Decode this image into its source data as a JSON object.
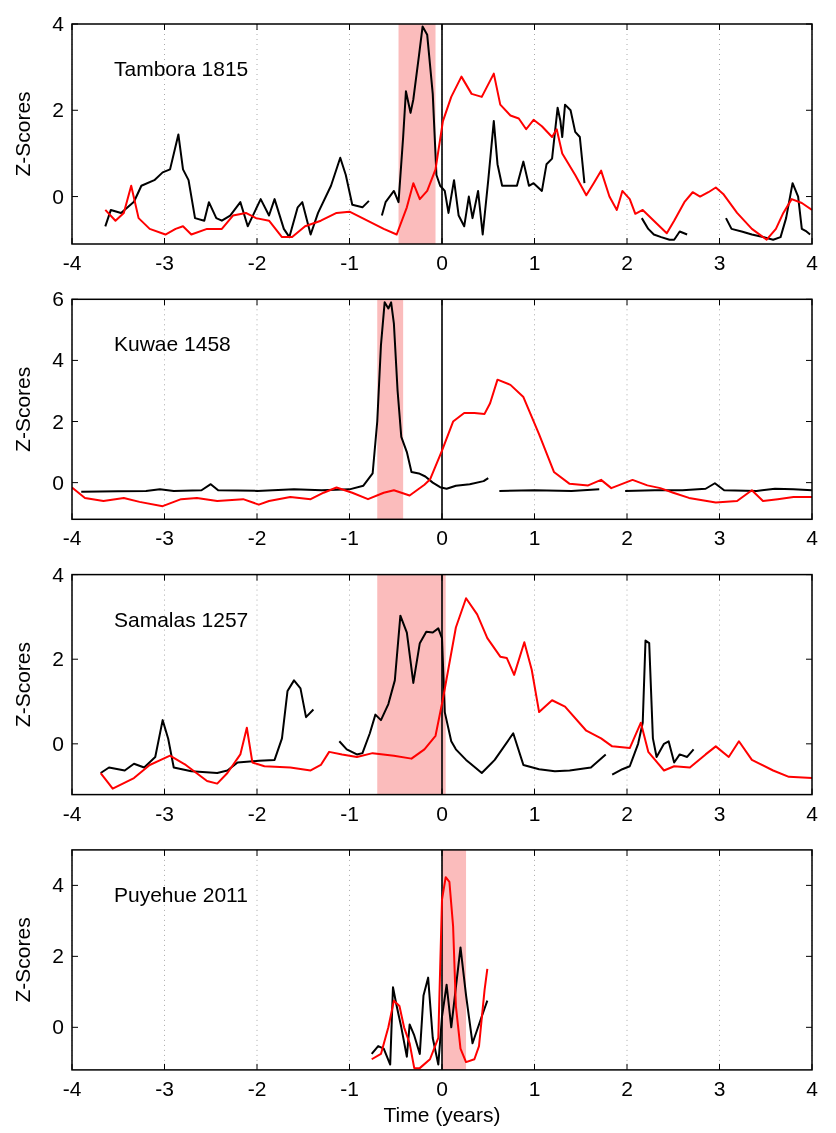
{
  "chart_data": [
    {
      "type": "line",
      "ylabel": "Z-Scores",
      "annotations": [
        "Tambora 1815"
      ],
      "xlim": [
        -4,
        4
      ],
      "xticks": [
        -4,
        -3,
        -2,
        -1,
        0,
        1,
        2,
        3,
        4
      ],
      "ylim": [
        -1.1,
        4
      ],
      "yticks": [
        0,
        2,
        4
      ],
      "grid": "x",
      "ref_lines": [
        {
          "axis": "x",
          "value": 0,
          "color": "#000000"
        }
      ],
      "bands": [
        {
          "axis": "x",
          "from": -0.47,
          "to": -0.07,
          "color": "#fbbcbc"
        }
      ],
      "series": [
        {
          "color": "#000000",
          "x": [
            -3.64,
            -3.58,
            -3.47,
            -3.33,
            -3.25,
            -3.11,
            -3.02,
            -2.94,
            -2.85,
            -2.8,
            -2.74,
            -2.67,
            -2.57,
            -2.52,
            -2.44,
            -2.38,
            -2.29,
            -2.18,
            -2.1,
            -1.96,
            -1.87,
            -1.81,
            -1.71,
            -1.65,
            -1.56,
            -1.51,
            -1.42,
            -1.34,
            -1.2,
            -1.1,
            -1.04,
            -0.97,
            -0.86,
            -0.79,
            -0.72,
            -0.65,
            -0.61,
            -0.52,
            -0.47,
            -0.42,
            -0.39,
            -0.34,
            -0.31,
            -0.25,
            -0.21,
            -0.16,
            -0.1,
            -0.06,
            -0.02,
            0.03,
            0.07,
            0.13,
            0.18,
            0.24,
            0.29,
            0.33,
            0.39,
            0.44,
            0.5,
            0.56,
            0.6,
            0.65,
            0.74,
            0.81,
            0.88,
            0.94,
            0.99,
            1.08,
            1.13,
            1.19,
            1.25,
            1.28,
            1.3,
            1.33,
            1.39,
            1.44,
            1.49,
            1.54,
            1.85,
            2.16,
            2.23,
            2.29,
            2.37,
            2.46,
            2.51,
            2.57,
            2.65,
            2.86,
            3.07,
            3.13,
            3.24,
            3.35,
            3.47,
            3.58,
            3.66,
            3.72,
            3.79,
            3.85,
            3.89,
            3.94,
            3.98
          ],
          "values": [
            -0.69,
            -0.31,
            -0.38,
            -0.12,
            0.25,
            0.38,
            0.56,
            0.63,
            1.44,
            0.63,
            0.38,
            -0.5,
            -0.56,
            -0.13,
            -0.5,
            -0.56,
            -0.44,
            -0.13,
            -0.69,
            -0.06,
            -0.44,
            -0.06,
            -0.75,
            -0.94,
            -0.25,
            -0.13,
            -0.88,
            -0.38,
            0.25,
            0.9,
            0.5,
            -0.19,
            -0.25,
            -0.1,
            null,
            -0.44,
            -0.13,
            0.13,
            -0.13,
            1.38,
            2.44,
            1.94,
            2.25,
            3.25,
            3.94,
            3.75,
            2.38,
            0.5,
            0.25,
            0.13,
            -0.38,
            0.38,
            -0.44,
            -0.69,
            0,
            -0.5,
            0.13,
            -0.88,
            0.38,
            1.75,
            0.75,
            0.25,
            0.25,
            0.25,
            0.81,
            0.25,
            0.31,
            0.13,
            0.75,
            0.88,
            2.06,
            1.75,
            1.38,
            2.13,
            2.0,
            1.5,
            1.38,
            0.31,
            null,
            -0.5,
            -0.75,
            -0.88,
            -0.94,
            -1.0,
            -1.0,
            -0.81,
            -0.88,
            null,
            -0.5,
            -0.75,
            -0.81,
            -0.88,
            -0.94,
            -1.0,
            -0.94,
            -0.5,
            0.31,
            0,
            -0.75,
            -0.81,
            -0.88
          ]
        },
        {
          "color": "#ff0000",
          "x": [
            -3.64,
            -3.53,
            -3.44,
            -3.36,
            -3.28,
            -3.16,
            -2.99,
            -2.88,
            -2.8,
            -2.71,
            -2.54,
            -2.38,
            -2.26,
            -2.12,
            -2.01,
            -1.87,
            -1.73,
            -1.62,
            -1.48,
            -1.31,
            -1.14,
            -1.0,
            -0.86,
            -0.63,
            -0.49,
            -0.38,
            -0.31,
            -0.24,
            -0.16,
            -0.07,
            0.01,
            0.1,
            0.21,
            0.32,
            0.43,
            0.56,
            0.63,
            0.74,
            0.83,
            0.91,
            0.99,
            1.08,
            1.19,
            1.24,
            1.3,
            1.44,
            1.56,
            1.64,
            1.72,
            1.81,
            1.89,
            1.95,
            2.03,
            2.09,
            2.17,
            2.29,
            2.43,
            2.51,
            2.62,
            2.71,
            2.79,
            2.88,
            2.96,
            3.04,
            3.19,
            3.35,
            3.51,
            3.61,
            3.69,
            3.78,
            3.89,
            4.0
          ],
          "values": [
            -0.31,
            -0.56,
            -0.38,
            0.25,
            -0.5,
            -0.75,
            -0.88,
            -0.75,
            -0.69,
            -0.88,
            -0.75,
            -0.75,
            -0.44,
            -0.38,
            -0.5,
            -0.56,
            -0.94,
            -0.94,
            -0.69,
            -0.56,
            -0.38,
            -0.35,
            -0.5,
            -0.75,
            -0.88,
            -0.25,
            0.31,
            -0.06,
            0.13,
            0.63,
            1.75,
            2.31,
            2.78,
            2.38,
            2.31,
            2.85,
            2.13,
            1.88,
            1.81,
            1.56,
            1.78,
            1.63,
            1.38,
            1.56,
            1.0,
            0.5,
            0.03,
            0.31,
            0.6,
            0,
            -0.31,
            0.13,
            -0.06,
            -0.4,
            -0.31,
            -0.56,
            -0.85,
            -0.56,
            -0.13,
            0.1,
            0,
            0.1,
            0.21,
            0.06,
            -0.38,
            -0.75,
            -1.0,
            -0.75,
            -0.38,
            -0.06,
            -0.15,
            -0.31
          ]
        }
      ]
    },
    {
      "type": "line",
      "ylabel": "Z-Scores",
      "annotations": [
        "Kuwae 1458"
      ],
      "xlim": [
        -4,
        4
      ],
      "xticks": [
        -4,
        -3,
        -2,
        -1,
        0,
        1,
        2,
        3,
        4
      ],
      "ylim": [
        -1.2,
        6
      ],
      "yticks": [
        0,
        2,
        4,
        6
      ],
      "grid": "x",
      "ref_lines": [
        {
          "axis": "x",
          "value": 0,
          "color": "#000000"
        }
      ],
      "bands": [
        {
          "axis": "x",
          "from": -0.7,
          "to": -0.42,
          "color": "#fbbcbc"
        }
      ],
      "series": [
        {
          "color": "#000000",
          "x": [
            -3.9,
            -3.5,
            -3.2,
            -3.05,
            -2.9,
            -2.6,
            -2.5,
            -2.42,
            -2.0,
            -1.6,
            -1.3,
            -1.0,
            -0.85,
            -0.75,
            -0.7,
            -0.66,
            -0.62,
            -0.58,
            -0.55,
            -0.52,
            -0.48,
            -0.44,
            -0.38,
            -0.33,
            -0.25,
            -0.18,
            -0.1,
            -0.02,
            0.05,
            0.15,
            0.3,
            0.45,
            0.5,
            0.56,
            0.62,
            1.0,
            1.4,
            1.7,
            1.84,
            1.98,
            2.3,
            2.6,
            2.85,
            2.95,
            3.05,
            3.4,
            3.6,
            3.8,
            4.0
          ],
          "values": [
            -0.3,
            -0.28,
            -0.27,
            -0.22,
            -0.27,
            -0.25,
            -0.05,
            -0.25,
            -0.27,
            -0.22,
            -0.25,
            -0.22,
            -0.1,
            0.3,
            2.0,
            4.5,
            5.9,
            5.7,
            5.9,
            5.2,
            3.0,
            1.5,
            1.0,
            0.35,
            0.3,
            0.2,
            0.0,
            -0.15,
            -0.2,
            -0.1,
            -0.05,
            0.05,
            0.15,
            null,
            -0.27,
            -0.25,
            -0.27,
            -0.22,
            null,
            -0.27,
            -0.25,
            -0.25,
            -0.2,
            -0.02,
            -0.25,
            -0.27,
            -0.2,
            -0.22,
            -0.25
          ]
        },
        {
          "color": "#ff0000",
          "x": [
            -4.0,
            -3.86,
            -3.66,
            -3.44,
            -3.27,
            -3.02,
            -2.82,
            -2.65,
            -2.43,
            -2.15,
            -1.98,
            -1.87,
            -1.64,
            -1.42,
            -1.28,
            -1.14,
            -0.97,
            -0.8,
            -0.63,
            -0.52,
            -0.35,
            -0.19,
            -0.13,
            0,
            0.12,
            0.24,
            0.35,
            0.46,
            0.52,
            0.6,
            0.74,
            0.88,
            1.05,
            1.21,
            1.38,
            1.58,
            1.72,
            1.83,
            2.06,
            2.22,
            2.36,
            2.5,
            2.67,
            2.96,
            3.19,
            3.35,
            3.47,
            3.63,
            3.8,
            4.0
          ],
          "values": [
            -0.16,
            -0.5,
            -0.6,
            -0.5,
            -0.63,
            -0.77,
            -0.54,
            -0.5,
            -0.6,
            -0.54,
            -0.72,
            -0.6,
            -0.47,
            -0.54,
            -0.33,
            -0.16,
            -0.33,
            -0.54,
            -0.33,
            -0.25,
            -0.42,
            -0.07,
            0.1,
            1.05,
            2.0,
            2.28,
            2.28,
            2.25,
            2.6,
            3.37,
            3.2,
            2.8,
            1.58,
            0.35,
            -0.04,
            -0.09,
            0.09,
            -0.18,
            0.09,
            -0.09,
            -0.18,
            -0.33,
            -0.5,
            -0.65,
            -0.6,
            -0.25,
            -0.6,
            -0.54,
            -0.47,
            -0.47
          ]
        }
      ]
    },
    {
      "type": "line",
      "ylabel": "Z-Scores",
      "annotations": [
        "Samalas 1257"
      ],
      "xlim": [
        -4,
        4
      ],
      "xticks": [
        -4,
        -3,
        -2,
        -1,
        0,
        1,
        2,
        3,
        4
      ],
      "ylim": [
        -1.2,
        4
      ],
      "yticks": [
        0,
        2,
        4
      ],
      "grid": "x",
      "ref_lines": [
        {
          "axis": "x",
          "value": 0,
          "color": "#000000"
        }
      ],
      "bands": [
        {
          "axis": "x",
          "from": -0.7,
          "to": 0.04,
          "color": "#fbbcbc"
        }
      ],
      "series": [
        {
          "color": "#000000",
          "x": [
            -3.69,
            -3.6,
            -3.43,
            -3.33,
            -3.22,
            -3.1,
            -3.02,
            -2.96,
            -2.9,
            -2.71,
            -2.43,
            -2.32,
            -2.21,
            -1.98,
            -1.81,
            -1.73,
            -1.67,
            -1.6,
            -1.53,
            -1.47,
            -1.39,
            -1.25,
            -1.11,
            -1.03,
            -0.92,
            -0.86,
            -0.78,
            -0.72,
            -0.66,
            -0.58,
            -0.51,
            -0.45,
            -0.38,
            -0.31,
            -0.24,
            -0.17,
            -0.1,
            -0.04,
            0,
            0.03,
            0.1,
            0.15,
            0.26,
            0.43,
            0.57,
            0.77,
            0.88,
            1.05,
            1.22,
            1.38,
            1.61,
            1.77,
            1.8,
            1.84,
            1.95,
            2.03,
            2.12,
            2.17,
            2.2,
            2.24,
            2.28,
            2.32,
            2.4,
            2.45,
            2.51,
            2.57,
            2.65,
            2.72
          ],
          "values": [
            -0.69,
            -0.56,
            -0.63,
            -0.47,
            -0.56,
            -0.31,
            0.56,
            0.12,
            -0.56,
            -0.65,
            -0.69,
            -0.63,
            -0.44,
            -0.4,
            -0.38,
            0.13,
            1.25,
            1.5,
            1.31,
            0.63,
            0.81,
            null,
            0.06,
            -0.13,
            -0.25,
            -0.22,
            0.25,
            0.69,
            0.56,
            0.94,
            1.5,
            3.03,
            2.63,
            1.44,
            2.38,
            2.65,
            2.63,
            2.73,
            2.5,
            0.75,
            0.06,
            -0.13,
            -0.38,
            -0.69,
            -0.38,
            0.25,
            -0.5,
            -0.6,
            -0.65,
            -0.63,
            -0.56,
            -0.25,
            null,
            -0.73,
            -0.6,
            -0.53,
            0,
            0.5,
            2.44,
            2.38,
            0.13,
            -0.31,
            0,
            0.06,
            -0.44,
            -0.25,
            -0.31,
            -0.13
          ]
        },
        {
          "color": "#ff0000",
          "x": [
            -3.69,
            -3.56,
            -3.33,
            -3.16,
            -2.94,
            -2.77,
            -2.54,
            -2.43,
            -2.32,
            -2.18,
            -2.11,
            -2.05,
            -1.92,
            -1.64,
            -1.42,
            -1.31,
            -1.22,
            -1.08,
            -0.92,
            -0.75,
            -0.52,
            -0.33,
            -0.19,
            -0.07,
            0.01,
            0.15,
            0.26,
            0.38,
            0.49,
            0.63,
            0.7,
            0.78,
            0.89,
            0.97,
            1.05,
            1.19,
            1.33,
            1.56,
            1.72,
            1.84,
            2.03,
            2.15,
            2.23,
            2.4,
            2.51,
            2.68,
            2.85,
            2.96,
            3.1,
            3.21,
            3.35,
            3.58,
            3.75,
            4.0
          ],
          "values": [
            -0.69,
            -1.06,
            -0.81,
            -0.5,
            -0.28,
            -0.5,
            -0.88,
            -0.94,
            -0.69,
            -0.25,
            0.38,
            -0.44,
            -0.53,
            -0.56,
            -0.63,
            -0.5,
            -0.19,
            -0.25,
            -0.31,
            -0.22,
            -0.28,
            -0.35,
            -0.13,
            0.19,
            1.06,
            2.75,
            3.44,
            3.06,
            2.5,
            2.06,
            2.03,
            1.63,
            2.4,
            1.75,
            0.75,
            1.03,
            0.88,
            0.31,
            0.13,
            -0.06,
            -0.1,
            0.5,
            -0.19,
            -0.63,
            -0.53,
            -0.56,
            -0.25,
            -0.06,
            -0.31,
            0.06,
            -0.38,
            -0.63,
            -0.78,
            -0.81
          ]
        }
      ]
    },
    {
      "type": "line",
      "ylabel": "Z-Scores",
      "xlabel": "Time (years)",
      "annotations": [
        "Puyehue 2011"
      ],
      "xlim": [
        -4,
        4
      ],
      "xticks": [
        -4,
        -3,
        -2,
        -1,
        0,
        1,
        2,
        3,
        4
      ],
      "ylim": [
        -1.2,
        5
      ],
      "yticks": [
        0,
        2,
        4
      ],
      "grid": "x",
      "ref_lines": [
        {
          "axis": "x",
          "value": 0,
          "color": "#000000"
        }
      ],
      "bands": [
        {
          "axis": "x",
          "from": 0,
          "to": 0.26,
          "color": "#fbbcbc"
        }
      ],
      "series": [
        {
          "color": "#000000",
          "x": [
            -0.76,
            -0.69,
            -0.63,
            -0.56,
            -0.53,
            -0.49,
            -0.44,
            -0.38,
            -0.35,
            -0.3,
            -0.24,
            -0.2,
            -0.15,
            -0.1,
            -0.04,
            0,
            0.05,
            0.1,
            0.14,
            0.2,
            0.26,
            0.33,
            0.4,
            0.46,
            0.49
          ],
          "values": [
            -0.75,
            -0.53,
            -0.6,
            -1.05,
            1.13,
            0.6,
            0,
            -0.83,
            0.08,
            -0.23,
            -0.75,
            0.9,
            1.4,
            -0.3,
            -1.05,
            0.3,
            1.2,
            0,
            0.9,
            2.25,
            0.9,
            -0.45,
            0.08,
            0.53,
            0.75
          ]
        },
        {
          "color": "#ff0000",
          "x": [
            -0.76,
            -0.66,
            -0.58,
            -0.52,
            -0.46,
            -0.41,
            -0.35,
            -0.3,
            -0.24,
            -0.13,
            -0.04,
            0,
            0.04,
            0.08,
            0.12,
            0.15,
            0.2,
            0.26,
            0.35,
            0.4,
            0.46,
            0.49
          ],
          "values": [
            -0.9,
            -0.75,
            0,
            0.75,
            0.6,
            0,
            -0.45,
            -1.15,
            -1.15,
            -0.9,
            -0.3,
            3.6,
            4.23,
            4.1,
            2.85,
            0.6,
            -0.6,
            -0.98,
            -0.9,
            -0.53,
            1.05,
            1.65
          ]
        }
      ]
    }
  ]
}
